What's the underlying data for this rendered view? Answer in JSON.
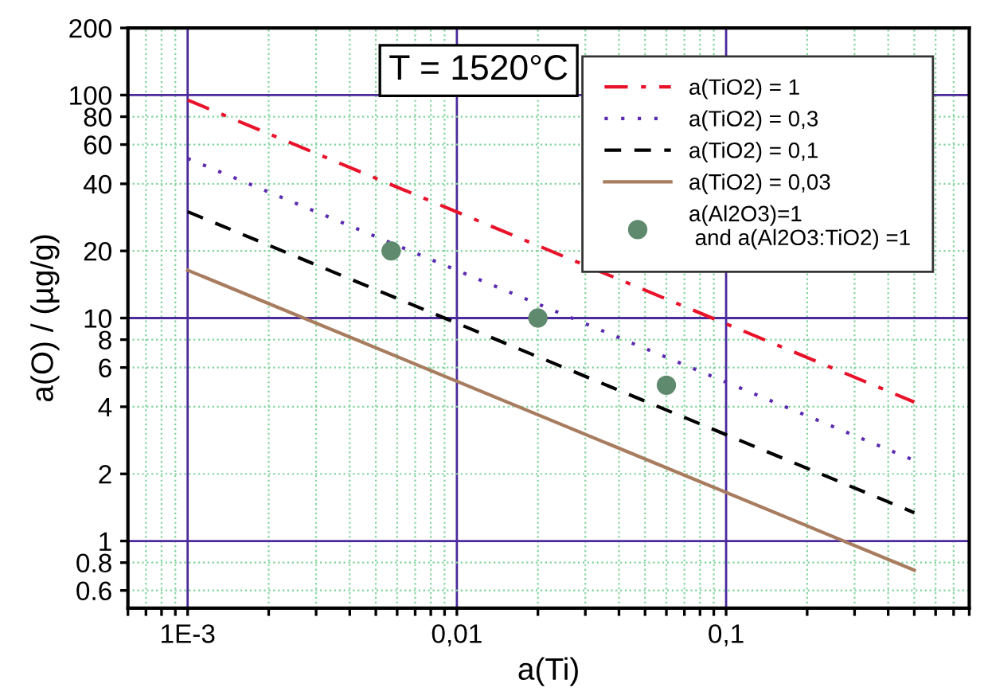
{
  "chart_data": {
    "type": "line",
    "log": "xy",
    "grid": true,
    "legend": "top right",
    "marker": "none",
    "xlabel": "a(Ti)",
    "ylabel": "a(O) / (µg/g)",
    "annotations": [
      "T = 1520°C"
    ],
    "xlim": [
      0.0006,
      0.8
    ],
    "ylim": [
      0.5,
      200
    ],
    "xticks": [
      {
        "value": 0.0006,
        "label": null
      },
      {
        "value": 0.0007,
        "label": null
      },
      {
        "value": 0.0008,
        "label": null
      },
      {
        "value": 0.0009,
        "label": null
      },
      {
        "value": 0.001,
        "label": "1E-3"
      },
      {
        "value": 0.002,
        "label": null
      },
      {
        "value": 0.003,
        "label": null
      },
      {
        "value": 0.004,
        "label": null
      },
      {
        "value": 0.005,
        "label": null
      },
      {
        "value": 0.006,
        "label": null
      },
      {
        "value": 0.007,
        "label": null
      },
      {
        "value": 0.008,
        "label": null
      },
      {
        "value": 0.009,
        "label": null
      },
      {
        "value": 0.01,
        "label": "0,01"
      },
      {
        "value": 0.02,
        "label": null
      },
      {
        "value": 0.03,
        "label": null
      },
      {
        "value": 0.04,
        "label": null
      },
      {
        "value": 0.05,
        "label": null
      },
      {
        "value": 0.06,
        "label": null
      },
      {
        "value": 0.07,
        "label": null
      },
      {
        "value": 0.08,
        "label": null
      },
      {
        "value": 0.09,
        "label": null
      },
      {
        "value": 0.1,
        "label": "0,1"
      },
      {
        "value": 0.2,
        "label": null
      },
      {
        "value": 0.3,
        "label": null
      },
      {
        "value": 0.4,
        "label": null
      },
      {
        "value": 0.5,
        "label": null
      },
      {
        "value": 0.6,
        "label": null
      },
      {
        "value": 0.7,
        "label": null
      },
      {
        "value": 0.8,
        "label": null
      }
    ],
    "yticks": [
      0.6,
      0.8,
      1,
      2,
      4,
      6,
      8,
      10,
      20,
      40,
      60,
      80,
      100,
      200
    ],
    "series": [
      {
        "name": "a(TiO2) = 1",
        "line_style": "dashdot",
        "color": "#e8132a",
        "x": [
          0.001,
          0.5
        ],
        "values": [
          95,
          4.2
        ]
      },
      {
        "name": "a(TiO2) = 0,3",
        "line_style": "dotted",
        "color": "#5a2bb0",
        "x": [
          0.001,
          0.5
        ],
        "values": [
          52,
          2.3
        ]
      },
      {
        "name": "a(TiO2) = 0,1",
        "line_style": "dashed",
        "color": "#000000",
        "x": [
          0.001,
          0.5
        ],
        "values": [
          30,
          1.34
        ]
      },
      {
        "name": "a(TiO2) = 0,03",
        "line_style": "solid",
        "color": "#a87c5f",
        "x": [
          0.001,
          0.5
        ],
        "values": [
          16.4,
          0.74
        ]
      },
      {
        "name": "a(Al2O3)=1\n and a(Al2O3:TiO2) =1",
        "type": "scatter",
        "marker": "circle",
        "color": "#5f8a6e",
        "x": [
          0.0057,
          0.02,
          0.06
        ],
        "values": [
          20,
          10,
          5
        ]
      }
    ]
  }
}
